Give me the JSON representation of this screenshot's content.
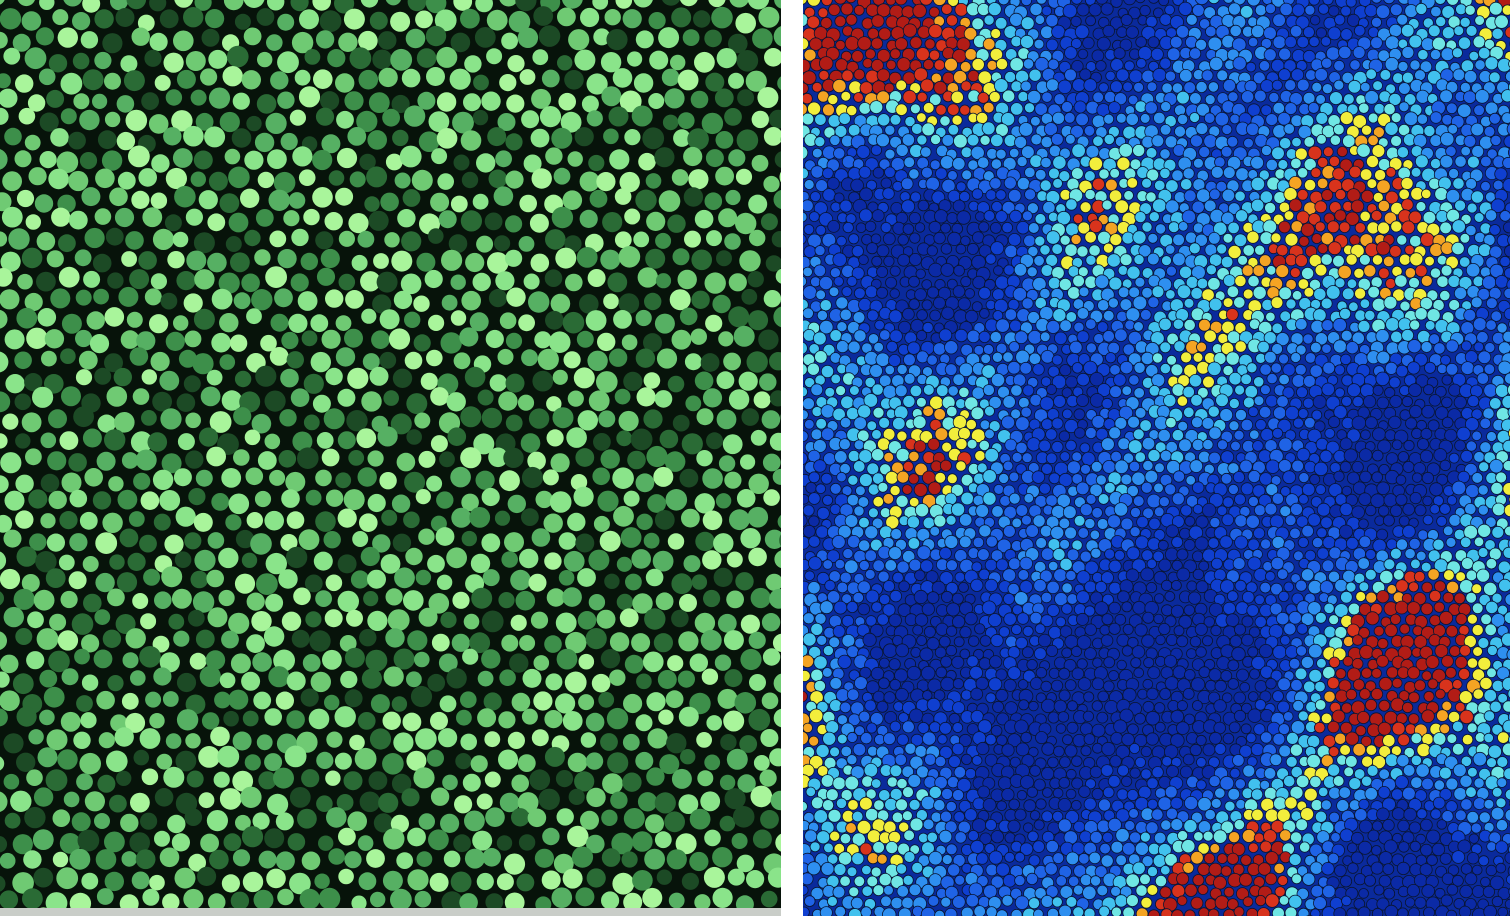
{
  "panels": [
    {
      "id": "fluorescence",
      "palette": [
        "#1c4a25",
        "#2a6b35",
        "#3d8f4a",
        "#56b063",
        "#6fca73",
        "#8ae48a",
        "#a9f59b"
      ],
      "background": "#07130a"
    },
    {
      "id": "colormap",
      "palette": [
        "#0b2aa6",
        "#0f3fd0",
        "#1f63e6",
        "#2e8ff0",
        "#41c1ee",
        "#6fe6e4",
        "#f2ee3c",
        "#f4a423",
        "#d8331c",
        "#b21c16"
      ],
      "background": "#0a2a9c"
    }
  ]
}
